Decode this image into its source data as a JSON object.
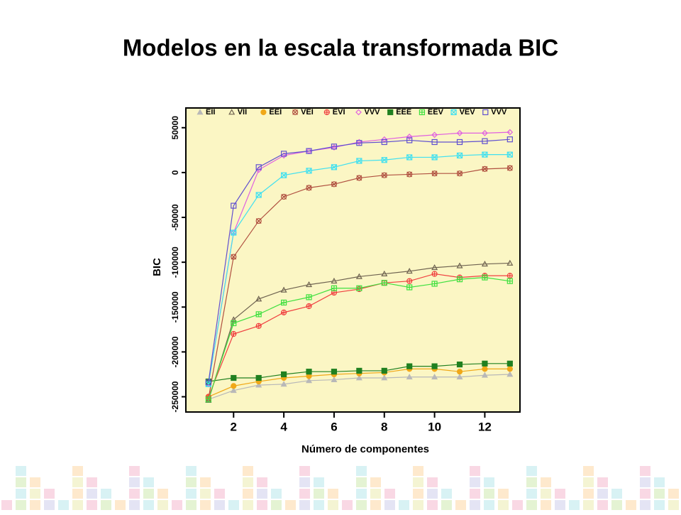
{
  "chart_data": {
    "type": "line",
    "title": "Modelos en la escala transformada BIC",
    "x_label": "Número de componentes",
    "y_label": "BIC",
    "x": [
      1,
      2,
      3,
      4,
      5,
      6,
      7,
      8,
      9,
      10,
      11,
      12,
      13
    ],
    "xlim": [
      0.1,
      13.4
    ],
    "xticks": [
      2,
      4,
      6,
      8,
      10,
      12
    ],
    "ylim": [
      -267000,
      72000
    ],
    "yticks": [
      50000,
      0,
      -50000,
      -100000,
      -150000,
      -200000,
      -250000
    ],
    "background": "#fbf6c4",
    "legend": "top",
    "series": [
      {
        "name": "EII",
        "color": "#b8b8b8",
        "marker": "triangle-filled",
        "values": [
          -253000,
          -243000,
          -237000,
          -236000,
          -232000,
          -231000,
          -229000,
          -229000,
          -228000,
          -228000,
          -228000,
          -226000,
          -225000
        ]
      },
      {
        "name": "VII",
        "color": "#6e6250",
        "marker": "triangle",
        "values": [
          -254000,
          -164000,
          -141000,
          -131000,
          -125000,
          -121000,
          -116000,
          -113000,
          -110000,
          -106000,
          -104000,
          -102000,
          -101000
        ]
      },
      {
        "name": "EEI",
        "color": "#f0a818",
        "marker": "circle-filled",
        "values": [
          -250000,
          -238000,
          -233000,
          -229000,
          -227000,
          -225000,
          -224000,
          -223000,
          -219000,
          -219000,
          -222000,
          -219000,
          -219000
        ]
      },
      {
        "name": "VEI",
        "color": "#b05040",
        "marker": "x-circle",
        "values": [
          -252000,
          -94000,
          -54000,
          -27000,
          -17000,
          -13000,
          -6000,
          -3000,
          -2000,
          -1000,
          -1000,
          4000,
          5000
        ]
      },
      {
        "name": "EVI",
        "color": "#f04040",
        "marker": "plus-circle",
        "values": [
          -250000,
          -180000,
          -171000,
          -156000,
          -149000,
          -134000,
          -130000,
          -123000,
          -121000,
          -113000,
          -117000,
          -115000,
          -115000
        ]
      },
      {
        "name": "VVV",
        "color": "#e060e0",
        "marker": "diamond",
        "values": [
          -236000,
          -67000,
          3000,
          19000,
          24000,
          28000,
          34000,
          37000,
          40000,
          42000,
          44000,
          44000,
          45000
        ]
      },
      {
        "name": "EEE",
        "color": "#208020",
        "marker": "square-filled",
        "values": [
          -233000,
          -229000,
          -229000,
          -225000,
          -222000,
          -222000,
          -221000,
          -221000,
          -216000,
          -216000,
          -214000,
          -213000,
          -213000
        ]
      },
      {
        "name": "EEV",
        "color": "#40e040",
        "marker": "plus-square",
        "values": [
          -253000,
          -168000,
          -158000,
          -145000,
          -139000,
          -129000,
          -129000,
          -123000,
          -128000,
          -124000,
          -119000,
          -117000,
          -121000
        ]
      },
      {
        "name": "VEV",
        "color": "#40e0f0",
        "marker": "x-square",
        "values": [
          -236000,
          -67000,
          -25000,
          -3000,
          2000,
          6000,
          13000,
          14000,
          17000,
          17000,
          19000,
          20000,
          20000
        ]
      },
      {
        "name": "VVV",
        "color": "#6050d0",
        "marker": "square",
        "values": [
          -234000,
          -37000,
          6000,
          21000,
          24000,
          29000,
          33000,
          34000,
          36000,
          34000,
          34000,
          35000,
          37000
        ]
      }
    ]
  }
}
